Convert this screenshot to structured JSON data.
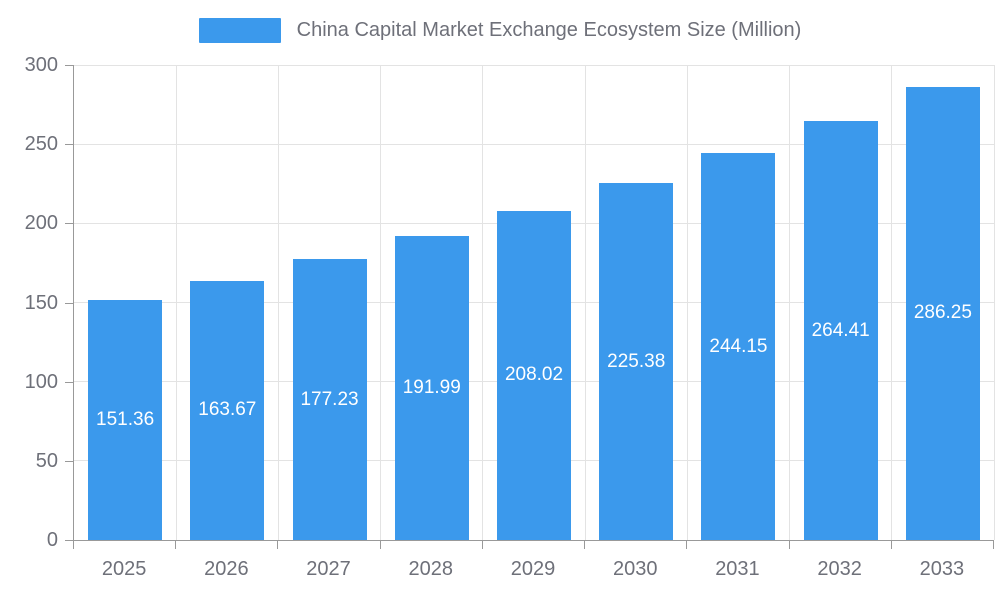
{
  "legend": {
    "label": "China Capital Market Exchange Ecosystem Size (Million)"
  },
  "chart_data": {
    "type": "bar",
    "title": "China Capital Market Exchange Ecosystem Size (Million)",
    "series_name": "China Capital Market Exchange Ecosystem Size (Million)",
    "categories": [
      "2025",
      "2026",
      "2027",
      "2028",
      "2029",
      "2030",
      "2031",
      "2032",
      "2033"
    ],
    "values": [
      151.36,
      163.67,
      177.23,
      191.99,
      208.02,
      225.38,
      244.15,
      264.41,
      286.25
    ],
    "value_labels": [
      "151.36",
      "163.67",
      "177.23",
      "191.99",
      "208.02",
      "225.38",
      "244.15",
      "264.41",
      "286.25"
    ],
    "xlabel": "",
    "ylabel": "",
    "ylim": [
      0,
      300
    ],
    "y_tick_interval": 50,
    "y_tick_labels": [
      "0",
      "50",
      "100",
      "150",
      "200",
      "250",
      "300"
    ],
    "grid": true,
    "legend_position": "top-center",
    "colors": {
      "bar": "#3b99ec",
      "value_label": "#ffffff",
      "axis_line": "#999999",
      "gridline": "#e3e3e3",
      "text": "#6e7079",
      "background": "#ffffff"
    }
  }
}
